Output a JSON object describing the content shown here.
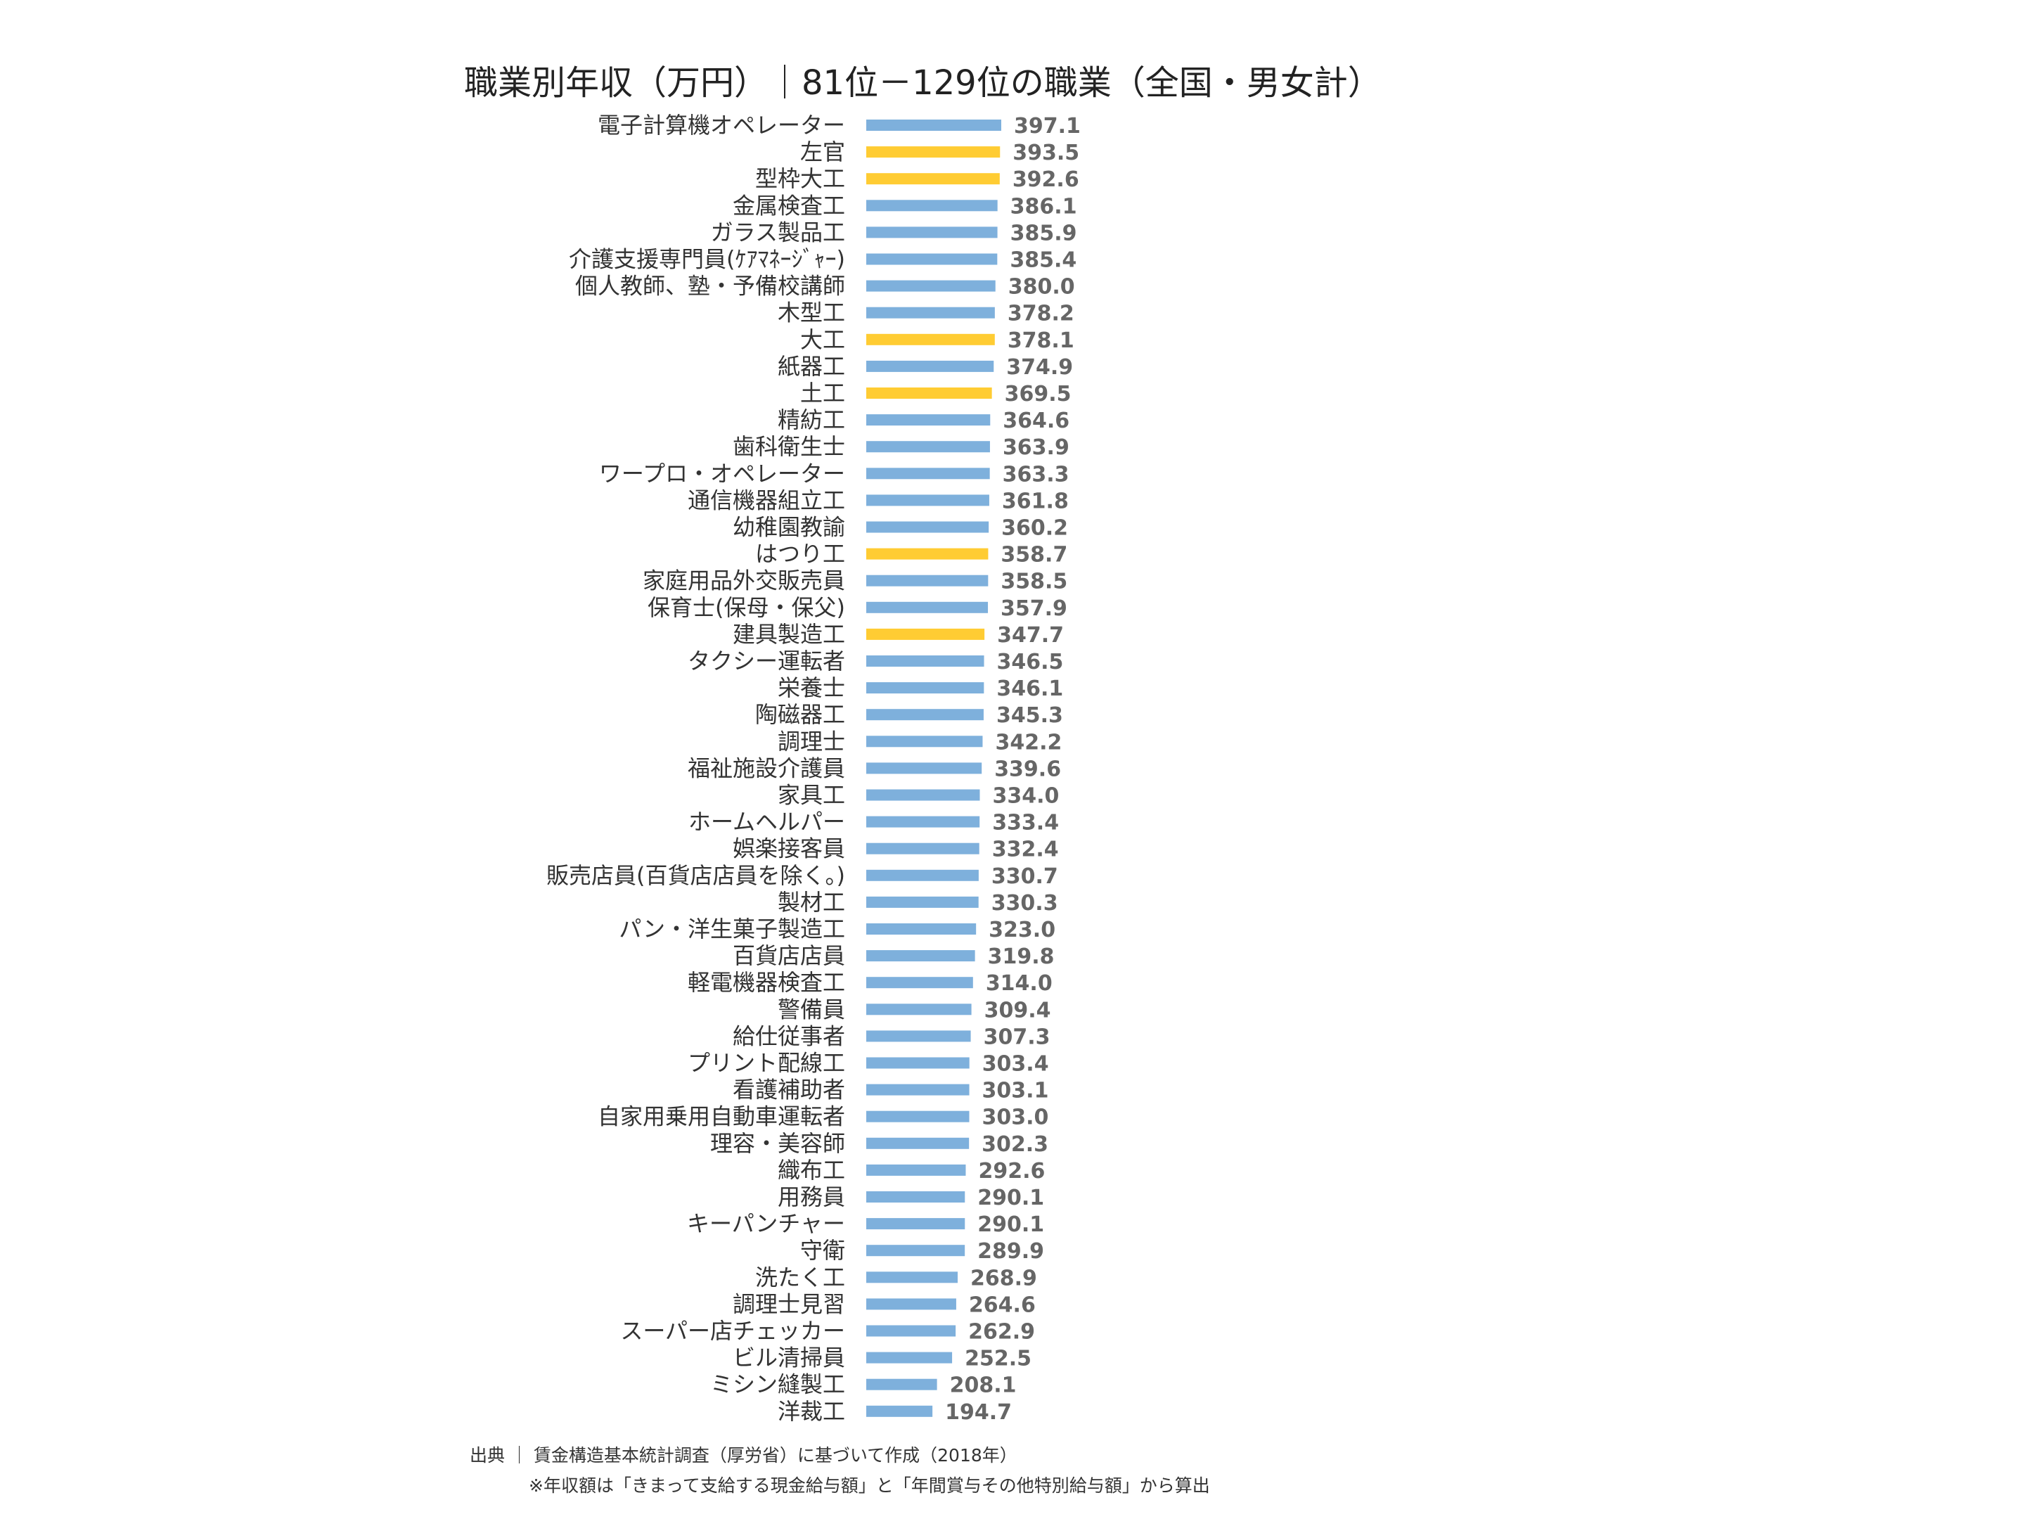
{
  "chart_data": {
    "type": "bar",
    "orientation": "horizontal",
    "title": "職業別年収（万円）｜81位－129位の職業（全国・男女計）",
    "xlabel": "",
    "ylabel": "",
    "xlim": [
      0,
      397.1
    ],
    "grid": false,
    "legend": "none",
    "colors": {
      "default": "#7EB0DC",
      "highlight": "#FFCC33"
    },
    "categories": [
      "電子計算機オペレーター",
      "左官",
      "型枠大工",
      "金属検査工",
      "ガラス製品工",
      "介護支援専門員(ｹｱﾏﾈｰｼﾞｬｰ)",
      "個人教師、塾・予備校講師",
      "木型工",
      "大工",
      "紙器工",
      "土工",
      "精紡工",
      "歯科衛生士",
      "ワープロ・オペレーター",
      "通信機器組立工",
      "幼稚園教諭",
      "はつり工",
      "家庭用品外交販売員",
      "保育士(保母・保父)",
      "建具製造工",
      "タクシー運転者",
      "栄養士",
      "陶磁器工",
      "調理士",
      "福祉施設介護員",
      "家具工",
      "ホームヘルパー",
      "娯楽接客員",
      "販売店員(百貨店店員を除く。)",
      "製材工",
      "パン・洋生菓子製造工",
      "百貨店店員",
      "軽電機器検査工",
      "警備員",
      "給仕従事者",
      "プリント配線工",
      "看護補助者",
      "自家用乗用自動車運転者",
      "理容・美容師",
      "織布工",
      "用務員",
      "キーパンチャー",
      "守衛",
      "洗たく工",
      "調理士見習",
      "スーパー店チェッカー",
      "ビル清掃員",
      "ミシン縫製工",
      "洋裁工"
    ],
    "values": [
      397.1,
      393.5,
      392.6,
      386.1,
      385.9,
      385.4,
      380.0,
      378.2,
      378.1,
      374.9,
      369.5,
      364.6,
      363.9,
      363.3,
      361.8,
      360.2,
      358.7,
      358.5,
      357.9,
      347.7,
      346.5,
      346.1,
      345.3,
      342.2,
      339.6,
      334.0,
      333.4,
      332.4,
      330.7,
      330.3,
      323.0,
      319.8,
      314.0,
      309.4,
      307.3,
      303.4,
      303.1,
      303.0,
      302.3,
      292.6,
      290.1,
      290.1,
      289.9,
      268.9,
      264.6,
      262.9,
      252.5,
      208.1,
      194.7
    ],
    "value_labels": [
      "397.1",
      "393.5",
      "392.6",
      "386.1",
      "385.9",
      "385.4",
      "380.0",
      "378.2",
      "378.1",
      "374.9",
      "369.5",
      "364.6",
      "363.9",
      "363.3",
      "361.8",
      "360.2",
      "358.7",
      "358.5",
      "357.9",
      "347.7",
      "346.5",
      "346.1",
      "345.3",
      "342.2",
      "339.6",
      "334.0",
      "333.4",
      "332.4",
      "330.7",
      "330.3",
      "323.0",
      "319.8",
      "314.0",
      "309.4",
      "307.3",
      "303.4",
      "303.1",
      "303.0",
      "302.3",
      "292.6",
      "290.1",
      "290.1",
      "289.9",
      "268.9",
      "264.6",
      "262.9",
      "252.5",
      "208.1",
      "194.7"
    ],
    "highlighted": [
      false,
      true,
      true,
      false,
      false,
      false,
      false,
      false,
      true,
      false,
      true,
      false,
      false,
      false,
      false,
      false,
      true,
      false,
      false,
      true,
      false,
      false,
      false,
      false,
      false,
      false,
      false,
      false,
      false,
      false,
      false,
      false,
      false,
      false,
      false,
      false,
      false,
      false,
      false,
      false,
      false,
      false,
      false,
      false,
      false,
      false,
      false,
      false,
      false
    ]
  },
  "source": {
    "line1": "出典 ｜ 賃金構造基本統計調査（厚労省）に基づいて作成（2018年）",
    "line2": "※年収額は「きまって支給する現金給与額」と「年間賞与その他特別給与額」から算出"
  }
}
